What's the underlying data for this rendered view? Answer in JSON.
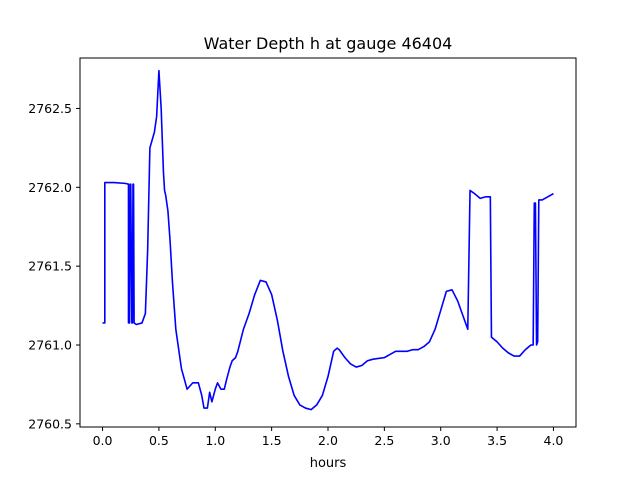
{
  "chart_data": {
    "type": "line",
    "title": "Water Depth h at gauge 46404",
    "xlabel": "hours",
    "ylabel": "",
    "xlim": [
      -0.2,
      4.2
    ],
    "ylim": [
      2760.48,
      2762.82
    ],
    "xticks": [
      0.0,
      0.5,
      1.0,
      1.5,
      2.0,
      2.5,
      3.0,
      3.5,
      4.0
    ],
    "xtick_labels": [
      "0.0",
      "0.5",
      "1.0",
      "1.5",
      "2.0",
      "2.5",
      "3.0",
      "3.5",
      "4.0"
    ],
    "yticks": [
      2760.5,
      2761.0,
      2761.5,
      2762.0,
      2762.5
    ],
    "ytick_labels": [
      "2760.5",
      "2761.0",
      "2761.5",
      "2762.0",
      "2762.5"
    ],
    "grid": false,
    "legend": null,
    "series": [
      {
        "color": "#0000ff",
        "x": [
          0.0,
          0.02,
          0.02,
          0.1,
          0.2,
          0.23,
          0.23,
          0.24,
          0.245,
          0.25,
          0.26,
          0.265,
          0.27,
          0.275,
          0.28,
          0.3,
          0.35,
          0.38,
          0.4,
          0.42,
          0.44,
          0.46,
          0.48,
          0.5,
          0.52,
          0.54,
          0.55,
          0.56,
          0.58,
          0.6,
          0.62,
          0.65,
          0.7,
          0.75,
          0.8,
          0.85,
          0.88,
          0.9,
          0.93,
          0.95,
          0.97,
          1.0,
          1.02,
          1.05,
          1.08,
          1.1,
          1.13,
          1.15,
          1.18,
          1.2,
          1.25,
          1.3,
          1.35,
          1.4,
          1.45,
          1.5,
          1.55,
          1.6,
          1.65,
          1.7,
          1.75,
          1.8,
          1.85,
          1.9,
          1.95,
          2.0,
          2.05,
          2.08,
          2.1,
          2.15,
          2.2,
          2.25,
          2.3,
          2.35,
          2.4,
          2.5,
          2.55,
          2.6,
          2.65,
          2.7,
          2.75,
          2.8,
          2.85,
          2.9,
          2.95,
          3.0,
          3.05,
          3.1,
          3.15,
          3.2,
          3.23,
          3.24,
          3.26,
          3.3,
          3.35,
          3.4,
          3.44,
          3.45,
          3.5,
          3.55,
          3.6,
          3.65,
          3.7,
          3.75,
          3.8,
          3.82,
          3.83,
          3.84,
          3.85,
          3.86,
          3.87,
          3.9,
          3.95,
          4.0
        ],
        "y": [
          2761.14,
          2761.14,
          2762.03,
          2762.03,
          2762.025,
          2762.02,
          2761.14,
          2761.14,
          2762.02,
          2762.02,
          2761.14,
          2761.14,
          2762.02,
          2762.02,
          2761.14,
          2761.13,
          2761.14,
          2761.2,
          2761.6,
          2762.25,
          2762.3,
          2762.35,
          2762.45,
          2762.74,
          2762.5,
          2762.1,
          2761.98,
          2761.95,
          2761.85,
          2761.65,
          2761.4,
          2761.1,
          2760.85,
          2760.72,
          2760.76,
          2760.76,
          2760.68,
          2760.6,
          2760.6,
          2760.7,
          2760.64,
          2760.72,
          2760.76,
          2760.72,
          2760.72,
          2760.78,
          2760.86,
          2760.9,
          2760.92,
          2760.96,
          2761.1,
          2761.2,
          2761.32,
          2761.41,
          2761.4,
          2761.32,
          2761.16,
          2760.96,
          2760.8,
          2760.68,
          2760.62,
          2760.6,
          2760.59,
          2760.62,
          2760.68,
          2760.8,
          2760.96,
          2760.98,
          2760.97,
          2760.92,
          2760.88,
          2760.86,
          2760.87,
          2760.9,
          2760.91,
          2760.92,
          2760.94,
          2760.96,
          2760.96,
          2760.96,
          2760.97,
          2760.97,
          2760.99,
          2761.02,
          2761.1,
          2761.22,
          2761.34,
          2761.35,
          2761.28,
          2761.18,
          2761.12,
          2761.1,
          2761.98,
          2761.96,
          2761.93,
          2761.94,
          2761.94,
          2761.05,
          2761.02,
          2760.98,
          2760.95,
          2760.93,
          2760.93,
          2760.97,
          2761.0,
          2761.0,
          2761.9,
          2761.9,
          2761.0,
          2761.02,
          2761.92,
          2761.92,
          2761.94,
          2761.96
        ]
      }
    ]
  }
}
